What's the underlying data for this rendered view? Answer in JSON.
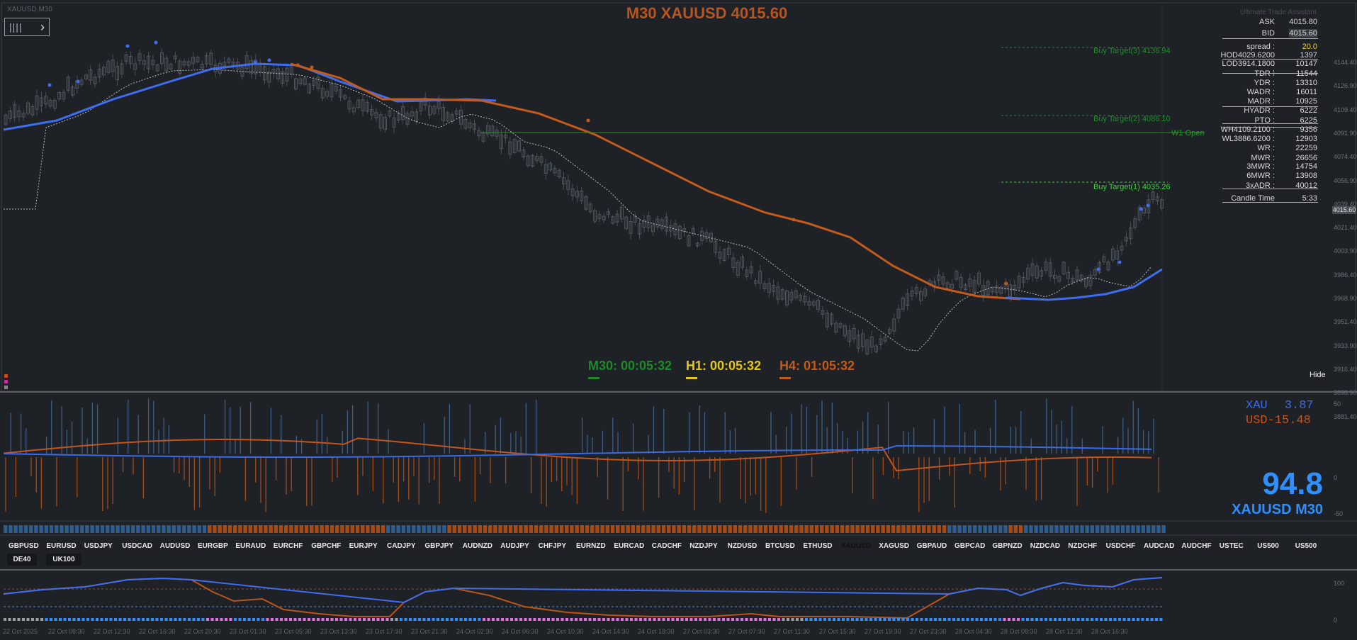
{
  "window": {
    "symbol_label": "XAUUSD,M30",
    "watermark": "Ultimate Trade Assistant"
  },
  "title": {
    "timeframe": "M30",
    "symbol": "XAUUSD",
    "price": "4015.60",
    "full": "M30 XAUUSD 4015.60"
  },
  "info_panel": {
    "rows": [
      {
        "label": "ASK",
        "value": "4015.80"
      },
      {
        "label": "BID",
        "value": "4015.60"
      },
      {
        "label": "spread :",
        "value": "20.0"
      },
      {
        "label": "HOD4029.6200 :",
        "value": "1397"
      },
      {
        "label": "LOD3914.1800 :",
        "value": "10147"
      },
      {
        "label": "TDR :",
        "value": "11544"
      },
      {
        "label": "YDR :",
        "value": "13310"
      },
      {
        "label": "WADR :",
        "value": "16011"
      },
      {
        "label": "MADR :",
        "value": "10925"
      },
      {
        "label": "HYADR :",
        "value": "6222"
      },
      {
        "label": "PTO :",
        "value": "6225"
      },
      {
        "label": "WH4109.2100 :",
        "value": "9356"
      },
      {
        "label": "WL3886.6200 :",
        "value": "12903"
      },
      {
        "label": "WR :",
        "value": "22259"
      },
      {
        "label": "MWR :",
        "value": "26656"
      },
      {
        "label": "3MWR :",
        "value": "14754"
      },
      {
        "label": "6MWR :",
        "value": "13908"
      },
      {
        "label": "3xADR :",
        "value": "40012"
      },
      {
        "label": "Candle Time",
        "value": "5:33"
      }
    ]
  },
  "targets": [
    {
      "label": "Buy Target(3) 4136.94",
      "color": "#1f8f2a"
    },
    {
      "label": "Buy Target(2) 4086.10",
      "color": "#1f8f2a"
    },
    {
      "label": "W1 Open",
      "color": "#2c9c2c"
    },
    {
      "label": "Buy Target(1) 4035.26",
      "color": "#3bd23b"
    }
  ],
  "timers": [
    {
      "label": "M30: 00:05:32",
      "color": "#1f8a2a"
    },
    {
      "label": "H1: 00:05:32",
      "color": "#e6c619"
    },
    {
      "label": "H4: 01:05:32",
      "color": "#c35a18"
    }
  ],
  "hide_label": "Hide",
  "price_axis": [
    "4144.40",
    "4126.90",
    "4109.40",
    "4091.90",
    "4074.40",
    "4056.90",
    "4039.40",
    "4021.40",
    "4003.90",
    "3986.40",
    "3968.90",
    "3951.40",
    "3933.90",
    "3916.40",
    "3898.90",
    "3881.40"
  ],
  "current_price_tag": "4015.60",
  "strength": {
    "xau": {
      "name": "XAU",
      "value": "3.87",
      "color": "#3a6be6"
    },
    "usd": {
      "name": "USD",
      "value": "-15.48",
      "color": "#c2541c"
    },
    "big_value": "94.8",
    "big_symbol": "XAUUSD M30",
    "axis": [
      "50",
      "0",
      "-50"
    ]
  },
  "symbols_row1": [
    "GBPUSD",
    "EURUSD",
    "USDJPY",
    "USDCAD",
    "AUDUSD",
    "EURGBP",
    "EURAUD",
    "EURCHF",
    "GBPCHF",
    "EURJPY",
    "CADJPY",
    "GBPJPY",
    "AUDNZD",
    "AUDJPY",
    "CHFJPY",
    "EURNZD",
    "EURCAD",
    "CADCHF",
    "NZDJPY",
    "NZDUSD",
    "BTCUSD",
    "ETHUSD",
    "XAUUSD",
    "XAGUSD",
    "GBPAUD",
    "GBPCAD",
    "GBPNZD",
    "NZDCAD",
    "NZDCHF",
    "USDCHF",
    "AUDCAD",
    "AUDCHF",
    "USTEC",
    "US500",
    "US500"
  ],
  "symbols_row2": [
    "DE40",
    "UK100"
  ],
  "active_symbol": "XAUUSD",
  "lower_axis": [
    "100",
    "0"
  ],
  "dates": [
    "22 Oct 2025",
    "22 Oct 08:30",
    "22 Oct 12:30",
    "22 Oct 16:30",
    "22 Oct 20:30",
    "23 Oct 01:30",
    "23 Oct 05:30",
    "23 Oct 13:30",
    "23 Oct 17:30",
    "23 Oct 21:30",
    "24 Oct 02:30",
    "24 Oct 06:30",
    "24 Oct 10:30",
    "24 Oct 14:30",
    "24 Oct 18:30",
    "27 Oct 03:30",
    "27 Oct 07:30",
    "27 Oct 11:30",
    "27 Oct 15:30",
    "27 Oct 19:30",
    "27 Oct 23:30",
    "28 Oct 04:30",
    "28 Oct 08:30",
    "28 Oct 12:30",
    "28 Oct 16:30"
  ]
}
